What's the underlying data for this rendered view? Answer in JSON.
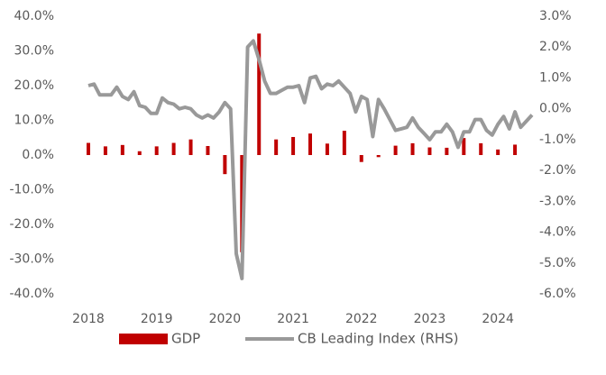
{
  "chart_data": {
    "type": "bar-line",
    "xlim": [
      2018,
      2024.5
    ],
    "xticks": [
      2018,
      2019,
      2020,
      2021,
      2022,
      2023,
      2024
    ],
    "ylim": [
      -40,
      40
    ],
    "yticks": [
      {
        "value": -40,
        "label": "-40.0%"
      },
      {
        "value": -30,
        "label": "-30.0%"
      },
      {
        "value": -20,
        "label": "-20.0%"
      },
      {
        "value": -10,
        "label": "-10.0%"
      },
      {
        "value": 0,
        "label": "0.0%"
      },
      {
        "value": 10,
        "label": "10.0%"
      },
      {
        "value": 20,
        "label": "20.0%"
      },
      {
        "value": 30,
        "label": "30.0%"
      },
      {
        "value": 40,
        "label": "40.0%"
      }
    ],
    "y2lim": [
      -6,
      3
    ],
    "y2ticks": [
      {
        "value": -6,
        "label": "-6.0%"
      },
      {
        "value": -5,
        "label": "-5.0%"
      },
      {
        "value": -4,
        "label": "-4.0%"
      },
      {
        "value": -3,
        "label": "-3.0%"
      },
      {
        "value": -2,
        "label": "-2.0%"
      },
      {
        "value": -1,
        "label": "-1.0%"
      },
      {
        "value": 0,
        "label": "0.0%"
      },
      {
        "value": 1,
        "label": "1.0%"
      },
      {
        "value": 2,
        "label": "2.0%"
      },
      {
        "value": 3,
        "label": "3.0%"
      }
    ],
    "series": [
      {
        "name": "GDP",
        "type": "bar",
        "color": "#c00000",
        "x": [
          2018,
          2018.25,
          2018.5,
          2018.75,
          2019,
          2019.25,
          2019.5,
          2019.75,
          2020,
          2020.25,
          2020.5,
          2020.75,
          2021,
          2021.25,
          2021.5,
          2021.75,
          2022,
          2022.25,
          2022.5,
          2022.75,
          2023,
          2023.25,
          2023.5,
          2023.75,
          2024,
          2024.25
        ],
        "values": [
          3.5,
          2.5,
          2.9,
          1.1,
          2.5,
          3.5,
          4.5,
          2.6,
          -5.5,
          -28,
          35,
          4.5,
          5.2,
          6.2,
          3.3,
          7.0,
          -2.0,
          -0.6,
          2.7,
          3.4,
          2.2,
          2.1,
          4.9,
          3.4,
          1.6,
          3.0
        ]
      },
      {
        "name": "CB Leading Index (RHS)",
        "type": "line",
        "axis": "y2",
        "color": "#999999",
        "x": [
          2018,
          2018.0833,
          2018.1667,
          2018.25,
          2018.3333,
          2018.4167,
          2018.5,
          2018.5833,
          2018.6667,
          2018.75,
          2018.8333,
          2018.9167,
          2019,
          2019.0833,
          2019.1667,
          2019.25,
          2019.3333,
          2019.4167,
          2019.5,
          2019.5833,
          2019.6667,
          2019.75,
          2019.8333,
          2019.9167,
          2020,
          2020.0833,
          2020.1667,
          2020.25,
          2020.3333,
          2020.4167,
          2020.5,
          2020.5833,
          2020.6667,
          2020.75,
          2020.8333,
          2020.9167,
          2021,
          2021.0833,
          2021.1667,
          2021.25,
          2021.3333,
          2021.4167,
          2021.5,
          2021.5833,
          2021.6667,
          2021.75,
          2021.8333,
          2021.9167,
          2022,
          2022.0833,
          2022.1667,
          2022.25,
          2022.3333,
          2022.4167,
          2022.5,
          2022.5833,
          2022.6667,
          2022.75,
          2022.8333,
          2022.9167,
          2023,
          2023.0833,
          2023.1667,
          2023.25,
          2023.3333,
          2023.4167,
          2023.5,
          2023.5833,
          2023.6667,
          2023.75,
          2023.8333,
          2023.9167,
          2024,
          2024.0833,
          2024.1667,
          2024.25,
          2024.3333,
          2024.4167,
          2024.5
        ],
        "values": [
          0.75,
          0.8,
          0.45,
          0.45,
          0.45,
          0.7,
          0.4,
          0.3,
          0.55,
          0.1,
          0.05,
          -0.15,
          -0.15,
          0.35,
          0.2,
          0.15,
          0.0,
          0.05,
          0.0,
          -0.2,
          -0.3,
          -0.2,
          -0.3,
          -0.1,
          0.2,
          0.0,
          -4.7,
          -5.5,
          2.0,
          2.2,
          1.6,
          0.9,
          0.5,
          0.5,
          0.6,
          0.7,
          0.7,
          0.75,
          0.2,
          1.0,
          1.05,
          0.65,
          0.8,
          0.75,
          0.9,
          0.7,
          0.5,
          -0.1,
          0.4,
          0.3,
          -0.9,
          0.3,
          0.0,
          -0.35,
          -0.7,
          -0.65,
          -0.6,
          -0.3,
          -0.6,
          -0.8,
          -1.0,
          -0.75,
          -0.75,
          -0.5,
          -0.75,
          -1.25,
          -0.75,
          -0.75,
          -0.35,
          -0.35,
          -0.7,
          -0.85,
          -0.5,
          -0.25,
          -0.65,
          -0.1,
          -0.6,
          -0.4,
          -0.2
        ]
      }
    ]
  }
}
